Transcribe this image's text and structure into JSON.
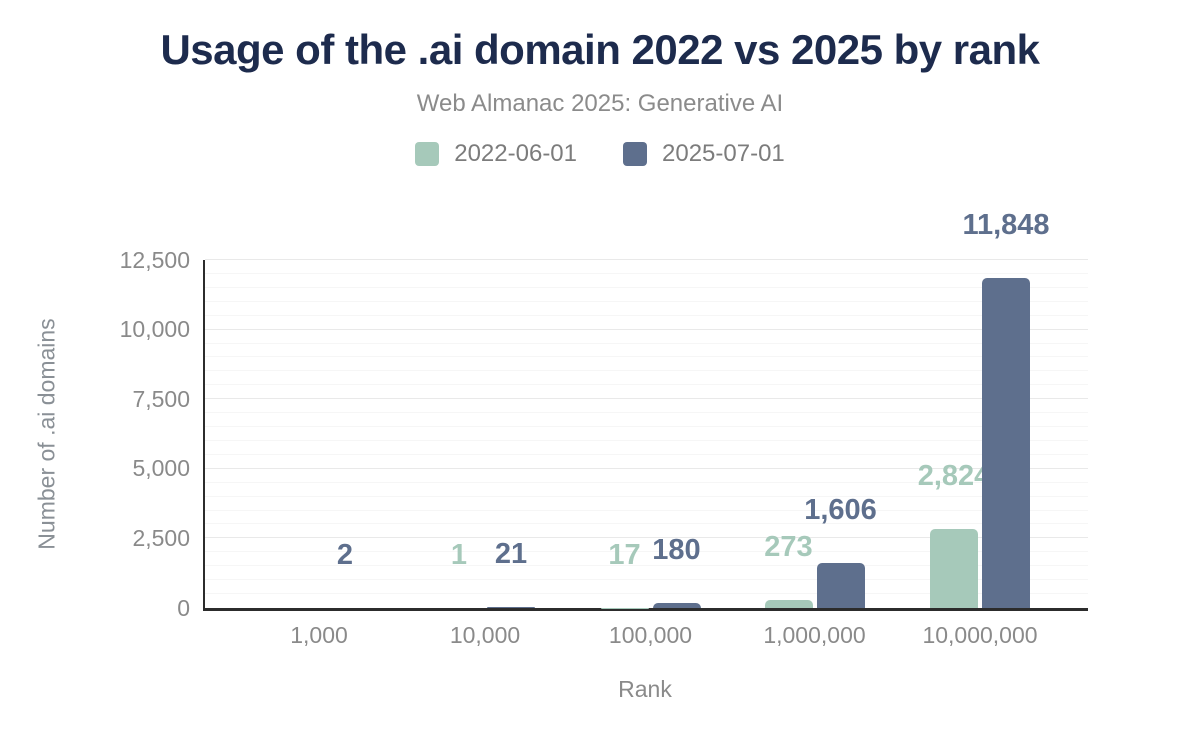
{
  "header": {
    "title": "Usage of the .ai domain 2022 vs 2025 by rank",
    "subtitle": "Web Almanac 2025: Generative AI"
  },
  "colors": {
    "title": "#1d2b4d",
    "subtitle_text": "#8b8b8b",
    "axis_text": "#8a8a8a",
    "axis_line": "#2c2c2c",
    "gridline_minor": "#f6f6f6",
    "gridline_major": "#e9e9e9",
    "series_2022": "#a6c9ba",
    "series_2025": "#5e6f8d",
    "background": "#ffffff"
  },
  "chart_data": {
    "type": "bar",
    "title": "Usage of the .ai domain 2022 vs 2025 by rank",
    "subtitle": "Web Almanac 2025: Generative AI",
    "categories": [
      "1,000",
      "10,000",
      "100,000",
      "1,000,000",
      "10,000,000"
    ],
    "series": [
      {
        "name": "2022-06-01",
        "color": "#a6c9ba",
        "values": [
          0,
          1,
          17,
          273,
          2824
        ],
        "labels": [
          "",
          "1",
          "17",
          "273",
          "2,824"
        ]
      },
      {
        "name": "2025-07-01",
        "color": "#5e6f8d",
        "values": [
          2,
          21,
          180,
          1606,
          11848
        ],
        "labels": [
          "2",
          "21",
          "180",
          "1,606",
          "11,848"
        ]
      }
    ],
    "xlabel": "Rank",
    "ylabel": "Number of .ai domains",
    "ylim": [
      0,
      12500
    ],
    "yticks": {
      "values": [
        0,
        2500,
        5000,
        7500,
        10000,
        12500
      ],
      "labels": [
        "0",
        "2,500",
        "5,000",
        "7,500",
        "10,000",
        "12,500"
      ]
    },
    "grid": "horizontal, minor every 500, major every 2500",
    "legend_position": "top"
  }
}
